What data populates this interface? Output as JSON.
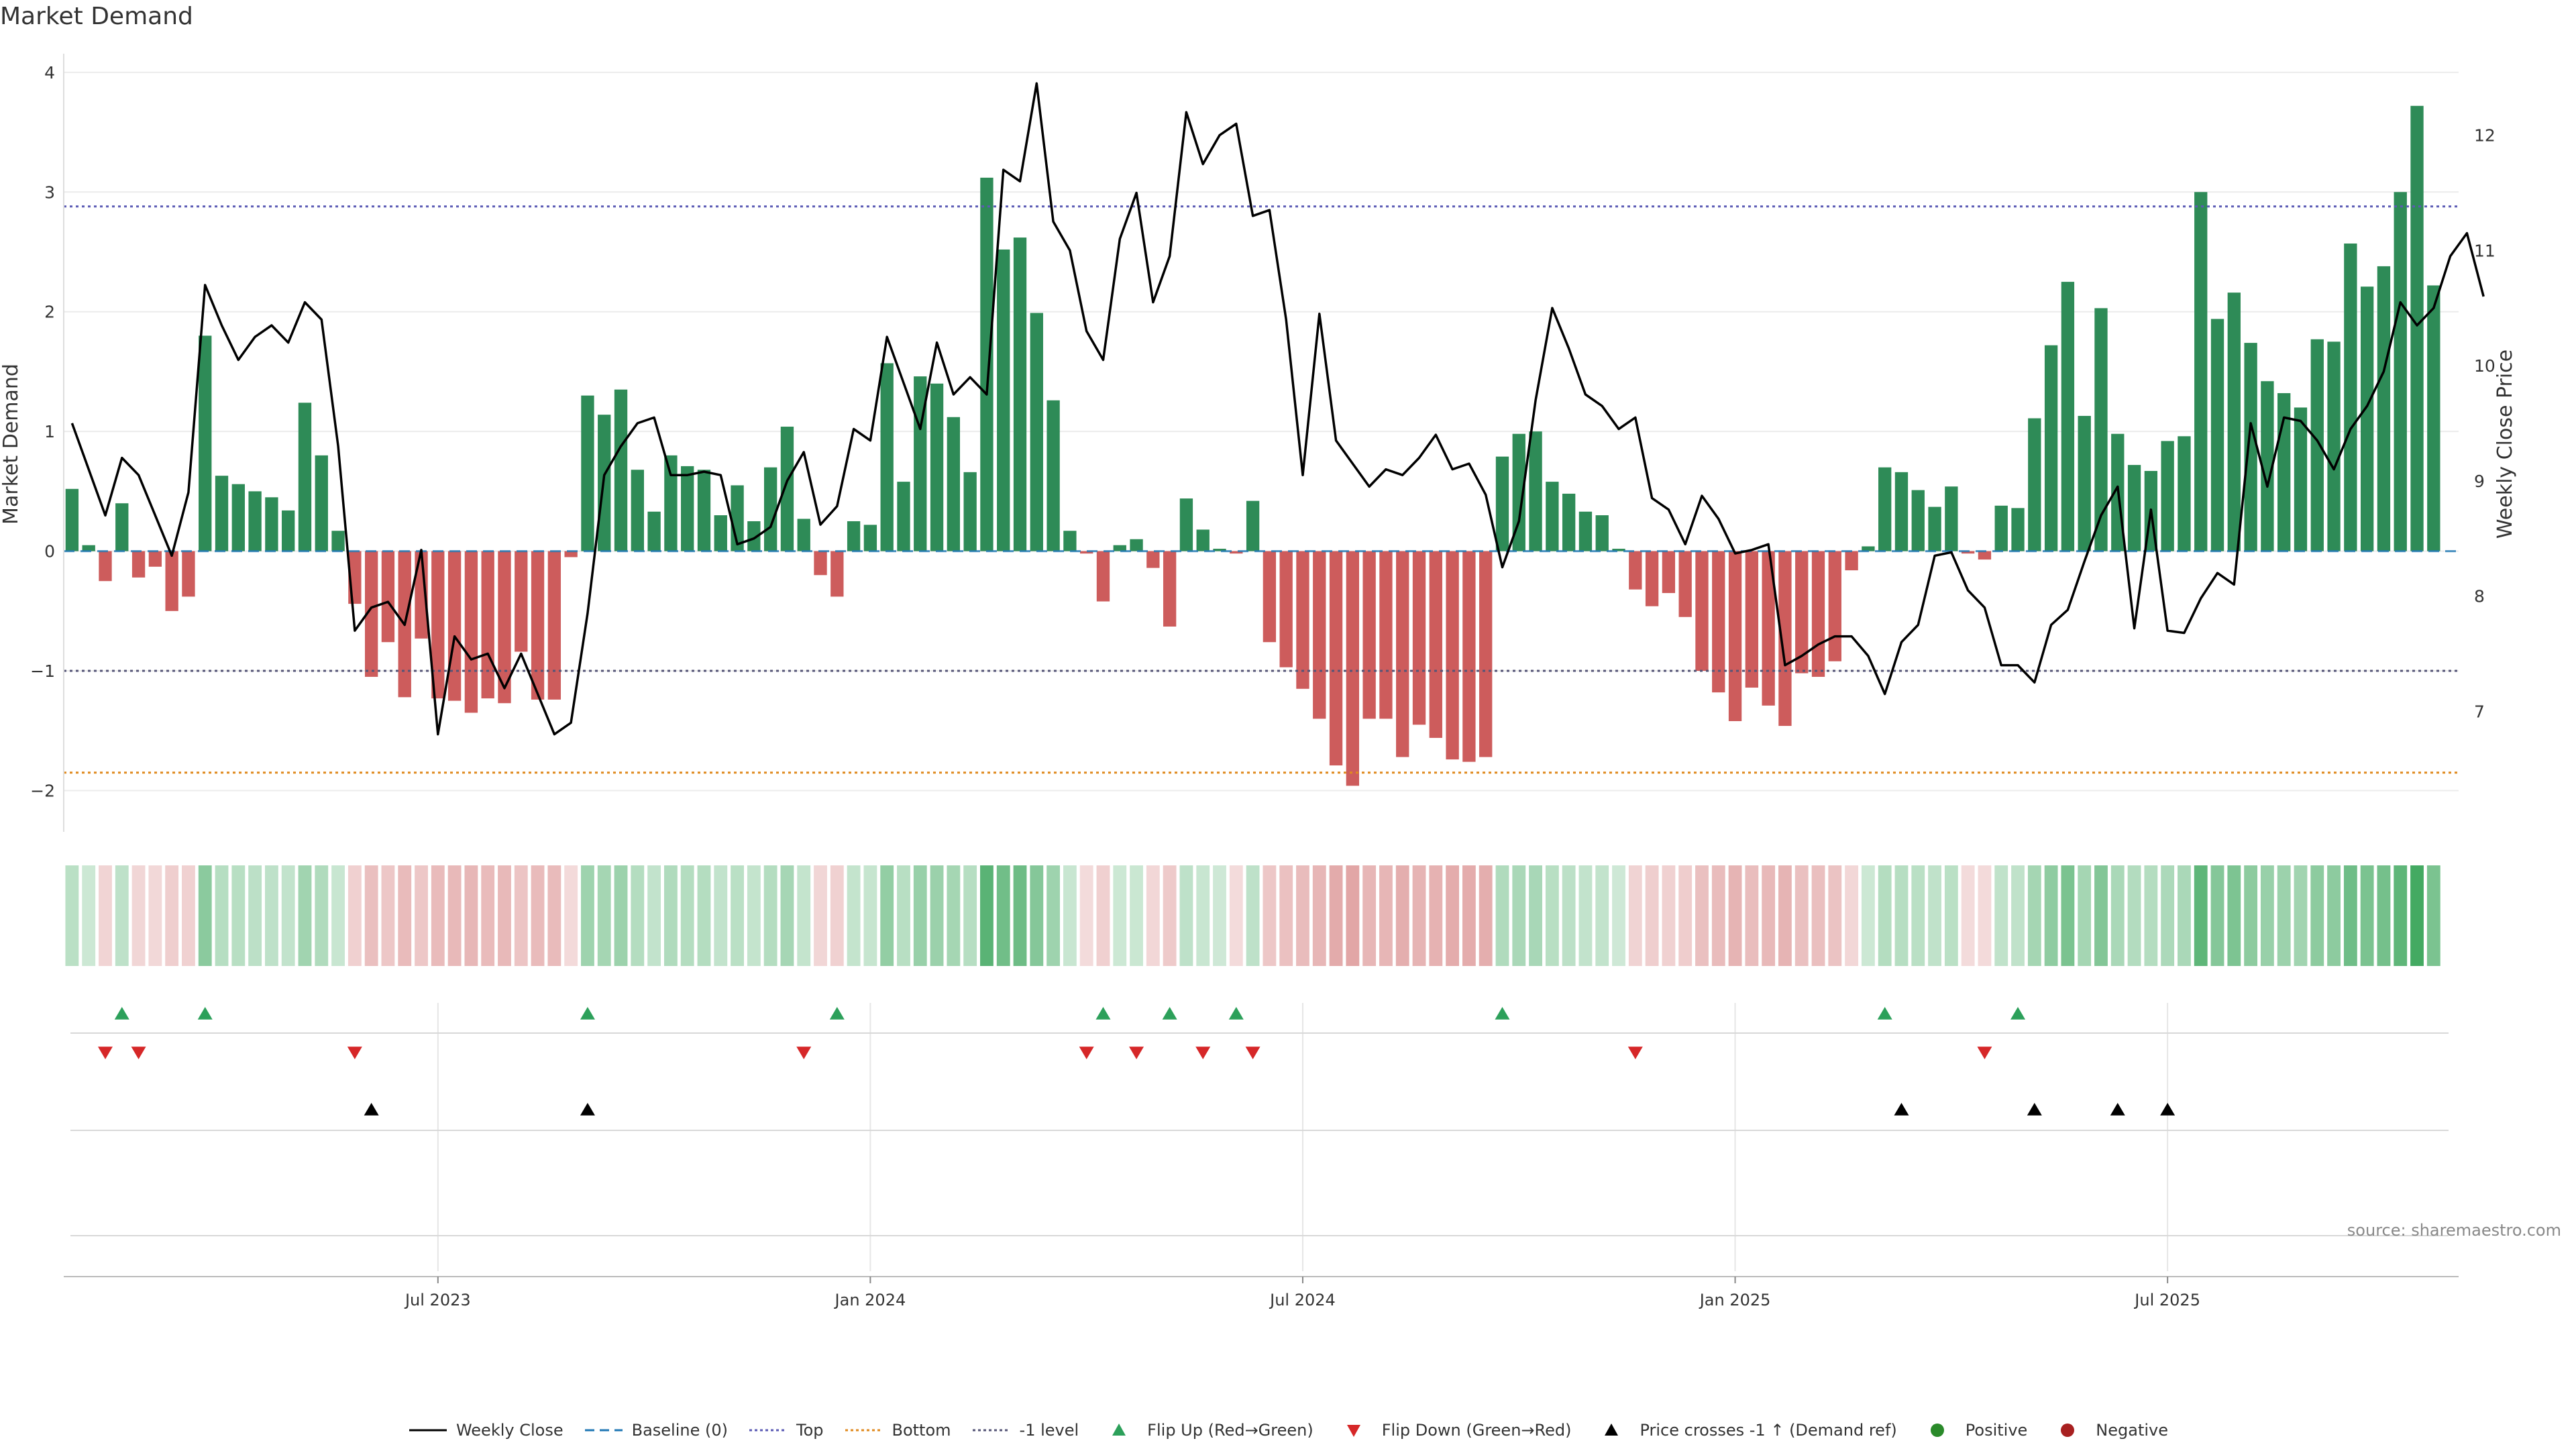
{
  "page_title": "Market Demand",
  "source_text": "source: sharemaestro.com",
  "colors": {
    "positive_bar": "#2e8b57",
    "negative_bar": "#cd5c5c",
    "price_line": "#000000",
    "baseline": "#1f77b4",
    "top_line": "#5b5bb5",
    "bottom_line": "#e08a1e",
    "minus_one_line": "#555577",
    "flip_up": "#2ca05a",
    "flip_down": "#d62728",
    "cross": "#000000",
    "positive_dot": "#2a8a2a",
    "negative_dot": "#a82020"
  },
  "chart_data": {
    "type": "bar",
    "title": "Market Demand",
    "ylabel": "Market Demand",
    "y2label": "Weekly Close Price",
    "ylim": [
      -2.3,
      4.1
    ],
    "y2lim": [
      6.0,
      12.65
    ],
    "yticks": [
      -2,
      -1,
      0,
      1,
      2,
      3,
      4
    ],
    "ytick_labels": [
      "−2",
      "−1",
      "0",
      "1",
      "2",
      "3",
      "4"
    ],
    "y2ticks": [
      7,
      8,
      9,
      10,
      11,
      12
    ],
    "x_tick_labels": [
      {
        "week": 22,
        "label": "Jul 2023"
      },
      {
        "week": 48,
        "label": "Jan 2024"
      },
      {
        "week": 74,
        "label": "Jul 2024"
      },
      {
        "week": 100,
        "label": "Jan 2025"
      },
      {
        "week": 126,
        "label": "Jul 2025"
      }
    ],
    "week_count": 144,
    "reference_lines": {
      "baseline": 0,
      "top": 2.88,
      "bottom": -1.85,
      "minus_one": -1
    },
    "demand": [
      0.52,
      0.05,
      -0.25,
      0.4,
      -0.22,
      -0.13,
      -0.5,
      -0.38,
      1.8,
      0.63,
      0.56,
      0.5,
      0.45,
      0.34,
      1.24,
      0.8,
      0.17,
      -0.44,
      -1.05,
      -0.76,
      -1.22,
      -0.73,
      -1.23,
      -1.25,
      -1.35,
      -1.23,
      -1.27,
      -0.84,
      -1.24,
      -1.24,
      -0.05,
      1.3,
      1.14,
      1.35,
      0.68,
      0.33,
      0.8,
      0.71,
      0.68,
      0.3,
      0.55,
      0.25,
      0.7,
      1.04,
      0.27,
      -0.2,
      -0.38,
      0.25,
      0.22,
      1.57,
      0.58,
      1.46,
      1.4,
      1.12,
      0.66,
      3.12,
      2.52,
      2.62,
      1.99,
      1.26,
      0.17,
      -0.02,
      -0.42,
      0.05,
      0.1,
      -0.14,
      -0.63,
      0.44,
      0.18,
      0.02,
      -0.02,
      0.42,
      -0.76,
      -0.97,
      -1.15,
      -1.4,
      -1.79,
      -1.96,
      -1.4,
      -1.4,
      -1.72,
      -1.45,
      -1.56,
      -1.74,
      -1.76,
      -1.72,
      0.79,
      0.98,
      1.0,
      0.58,
      0.48,
      0.33,
      0.3,
      0.02,
      -0.32,
      -0.46,
      -0.35,
      -0.55,
      -1.0,
      -1.18,
      -1.42,
      -1.14,
      -1.29,
      -1.46,
      -1.02,
      -1.05,
      -0.92,
      -0.16,
      0.04,
      0.7,
      0.66,
      0.51,
      0.37,
      0.54,
      -0.02,
      -0.07,
      0.38,
      0.36,
      1.11,
      1.72,
      2.25,
      1.13,
      2.03,
      0.98,
      0.72,
      0.67,
      0.92,
      0.96,
      3.0,
      1.94,
      2.16,
      1.74,
      1.42,
      1.32,
      1.2,
      1.77,
      1.75,
      2.57,
      2.21,
      2.38,
      3.0,
      3.72,
      2.22
    ],
    "weekly_close": [
      9.5,
      9.1,
      8.7,
      9.2,
      9.05,
      8.7,
      8.35,
      8.9,
      10.7,
      10.35,
      10.05,
      10.25,
      10.35,
      10.2,
      10.55,
      10.4,
      9.3,
      7.7,
      7.9,
      7.95,
      7.75,
      8.4,
      6.8,
      7.65,
      7.45,
      7.5,
      7.2,
      7.5,
      7.15,
      6.8,
      6.9,
      7.85,
      9.05,
      9.3,
      9.5,
      9.55,
      9.05,
      9.05,
      9.08,
      9.05,
      8.45,
      8.5,
      8.6,
      9.0,
      9.25,
      8.62,
      8.78,
      9.45,
      9.35,
      10.25,
      9.85,
      9.45,
      10.2,
      9.75,
      9.9,
      9.75,
      11.7,
      11.6,
      12.45,
      11.25,
      11.0,
      10.3,
      10.05,
      11.1,
      11.5,
      10.55,
      10.95,
      12.2,
      11.75,
      12.0,
      12.1,
      11.3,
      11.35,
      10.4,
      9.05,
      10.45,
      9.35,
      9.15,
      8.95,
      9.1,
      9.05,
      9.2,
      9.4,
      9.1,
      9.15,
      8.88,
      8.25,
      8.65,
      9.7,
      10.5,
      10.15,
      9.75,
      9.65,
      9.45,
      9.55,
      8.85,
      8.75,
      8.45,
      8.87,
      8.67,
      8.37,
      8.4,
      8.45,
      7.4,
      7.48,
      7.58,
      7.65,
      7.65,
      7.48,
      7.15,
      7.6,
      7.75,
      8.35,
      8.38,
      8.05,
      7.9,
      7.4,
      7.4,
      7.25,
      7.75,
      7.88,
      8.3,
      8.7,
      8.95,
      7.72,
      8.75,
      7.7,
      7.68,
      7.98,
      8.2,
      8.1,
      9.5,
      8.95,
      9.55,
      9.52,
      9.35,
      9.1,
      9.45,
      9.65,
      9.95,
      10.55,
      10.35,
      10.5,
      10.95,
      11.15,
      10.6
    ],
    "flip_up_weeks": [
      3,
      8,
      31,
      46,
      62,
      66,
      70,
      86,
      109,
      117
    ],
    "flip_down_weeks": [
      2,
      4,
      17,
      44,
      61,
      64,
      68,
      71,
      94,
      115
    ],
    "cross_up_weeks": [
      18,
      31,
      110,
      118,
      123,
      126
    ],
    "legend": [
      {
        "key": "weekly-close",
        "label": "Weekly Close",
        "style": "line-solid",
        "color": "#000000"
      },
      {
        "key": "baseline",
        "label": "Baseline (0)",
        "style": "line-dashed",
        "color": "#1f77b4"
      },
      {
        "key": "top",
        "label": "Top",
        "style": "line-dotted",
        "color": "#5b5bb5"
      },
      {
        "key": "bottom",
        "label": "Bottom",
        "style": "line-dotted",
        "color": "#e08a1e"
      },
      {
        "key": "minus-one",
        "label": "-1 level",
        "style": "line-dotted",
        "color": "#555577"
      },
      {
        "key": "flip-up",
        "label": "Flip Up (Red→Green)",
        "style": "triangle-up",
        "color": "#2ca05a"
      },
      {
        "key": "flip-down",
        "label": "Flip Down (Green→Red)",
        "style": "triangle-down",
        "color": "#d62728"
      },
      {
        "key": "cross-up",
        "label": "Price crosses -1 ↑ (Demand ref)",
        "style": "triangle-up",
        "color": "#000000"
      },
      {
        "key": "positive",
        "label": "Positive",
        "style": "dot",
        "color": "#2a8a2a"
      },
      {
        "key": "negative",
        "label": "Negative",
        "style": "dot",
        "color": "#a82020"
      }
    ]
  }
}
